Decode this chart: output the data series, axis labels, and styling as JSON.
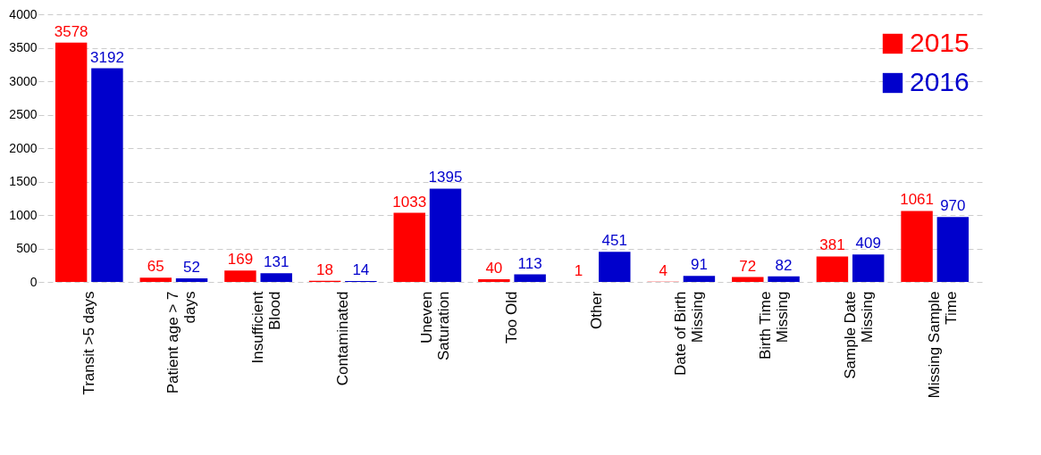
{
  "chart_data": {
    "type": "bar",
    "categories": [
      "Transit >5 days",
      "Patient age > 7 days",
      "Insufficient Blood",
      "Contaminated",
      "Uneven Saturation",
      "Too Old",
      "Other",
      "Date of Birth Missing",
      "Birth Time Missing",
      "Sample Date Missing",
      "Missing Sample Time"
    ],
    "series": [
      {
        "name": "2015",
        "color": "#ff0000",
        "values": [
          3578,
          65,
          169,
          18,
          1033,
          40,
          1,
          4,
          72,
          381,
          1061
        ]
      },
      {
        "name": "2016",
        "color": "#0000cc",
        "values": [
          3192,
          52,
          131,
          14,
          1395,
          113,
          451,
          91,
          82,
          409,
          970
        ]
      }
    ],
    "ylim": [
      0,
      4000
    ],
    "yticks": [
      0,
      500,
      1000,
      1500,
      2000,
      2500,
      3000,
      3500,
      4000
    ],
    "grid": "y",
    "legend": "top right",
    "data_labels": true
  }
}
